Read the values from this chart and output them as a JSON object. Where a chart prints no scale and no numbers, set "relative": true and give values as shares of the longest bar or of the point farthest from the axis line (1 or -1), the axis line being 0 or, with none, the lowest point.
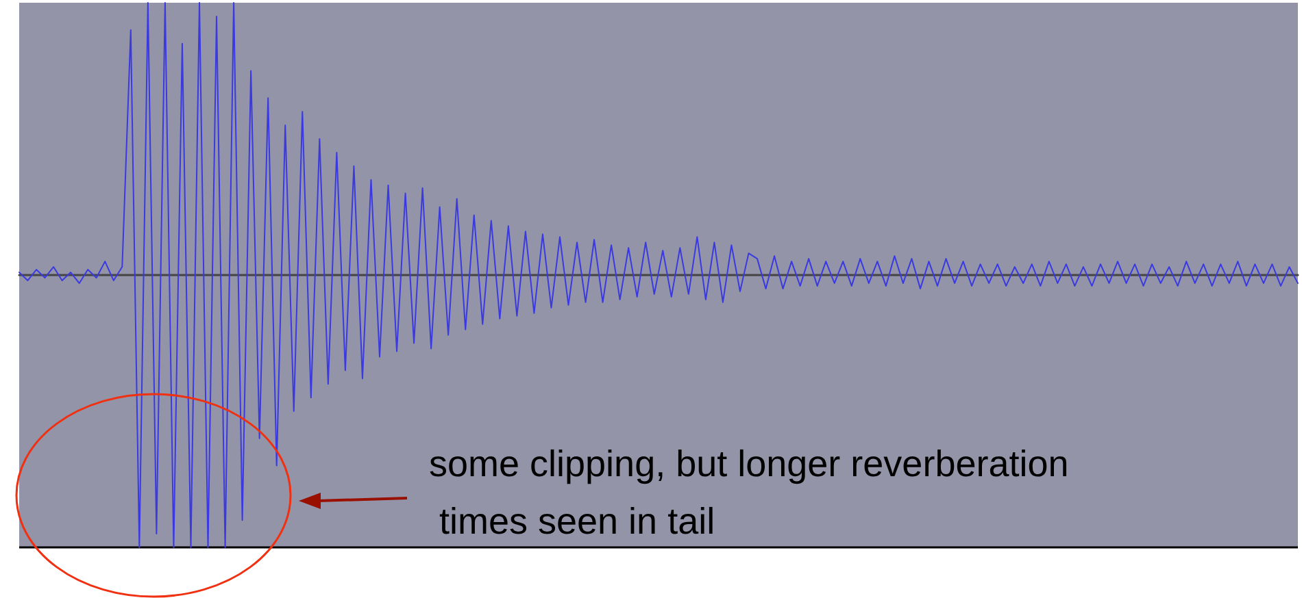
{
  "chart_data": {
    "type": "line",
    "relative": true,
    "categories": [
      null,
      null,
      null,
      null,
      null,
      null,
      null,
      null,
      null,
      null,
      null,
      null,
      null,
      null,
      null,
      null,
      null,
      null,
      null,
      null,
      null,
      null,
      null,
      null,
      null,
      null,
      null,
      null,
      null,
      null,
      null,
      null,
      null,
      null,
      null,
      null,
      null,
      null,
      null,
      null,
      null,
      null,
      null,
      null,
      null,
      null,
      null,
      null,
      null,
      null,
      null,
      null,
      null,
      null,
      null,
      null,
      null,
      null,
      null,
      null,
      null,
      null,
      null,
      null,
      null,
      null,
      null,
      null,
      null,
      null,
      null,
      null,
      null,
      null,
      null,
      null,
      null,
      null,
      null,
      null,
      null,
      null,
      null,
      null,
      null,
      null,
      null,
      null,
      null,
      null,
      null,
      null,
      null,
      null,
      null,
      null,
      null,
      null,
      null,
      null,
      null,
      null,
      null,
      null,
      null,
      null,
      null,
      null,
      null,
      null,
      null,
      null,
      null,
      null,
      null,
      null,
      null,
      null,
      null,
      null,
      null,
      null,
      null,
      null,
      null,
      null,
      null,
      null,
      null,
      null,
      null,
      null,
      null,
      null,
      null,
      null,
      null,
      null,
      null,
      null,
      null,
      null,
      null,
      null,
      null,
      null,
      null,
      null,
      null,
      null
    ],
    "series": [
      {
        "color": "#3a3ae0",
        "values": [
          0.01,
          -0.02,
          0.02,
          -0.01,
          0.03,
          -0.02,
          0.01,
          -0.03,
          0.02,
          -0.01,
          0.05,
          -0.02,
          0.03,
          0.9,
          -1,
          1,
          -0.95,
          1,
          -1,
          0.85,
          -1,
          1,
          -1,
          0.95,
          -1,
          1,
          -0.9,
          0.75,
          -0.6,
          0.65,
          -0.7,
          0.55,
          -0.5,
          0.6,
          -0.45,
          0.5,
          -0.4,
          0.45,
          -0.35,
          0.4,
          -0.38,
          0.35,
          -0.3,
          0.33,
          -0.28,
          0.3,
          -0.25,
          0.32,
          -0.27,
          0.25,
          -0.22,
          0.28,
          -0.2,
          0.22,
          -0.18,
          0.2,
          -0.16,
          0.18,
          -0.15,
          0.16,
          -0.14,
          0.15,
          -0.12,
          0.14,
          -0.11,
          0.12,
          -0.1,
          0.13,
          -0.1,
          0.11,
          -0.09,
          0.1,
          -0.08,
          0.12,
          -0.07,
          0.09,
          -0.08,
          0.1,
          -0.07,
          0.14,
          -0.09,
          0.12,
          -0.1,
          0.11,
          -0.06,
          0.08,
          0.06,
          -0.05,
          0.07,
          -0.05,
          0.05,
          -0.04,
          0.06,
          -0.04,
          0.05,
          -0.03,
          0.05,
          -0.04,
          0.06,
          -0.03,
          0.05,
          -0.04,
          0.07,
          -0.03,
          0.06,
          -0.05,
          0.05,
          -0.04,
          0.06,
          -0.03,
          0.05,
          -0.04,
          0.04,
          -0.03,
          0.04,
          -0.04,
          0.03,
          -0.03,
          0.04,
          -0.04,
          0.05,
          -0.03,
          0.04,
          -0.04,
          0.03,
          -0.04,
          0.04,
          -0.03,
          0.05,
          -0.03,
          0.04,
          -0.04,
          0.04,
          -0.03,
          0.03,
          -0.04,
          0.05,
          -0.03,
          0.04,
          -0.04,
          0.04,
          -0.03,
          0.05,
          -0.04,
          0.04,
          -0.03,
          0.04,
          -0.04,
          0.03,
          -0.03
        ]
      }
    ],
    "annotations": [
      "some clipping, but longer reverberation\n times seen in tail"
    ]
  }
}
